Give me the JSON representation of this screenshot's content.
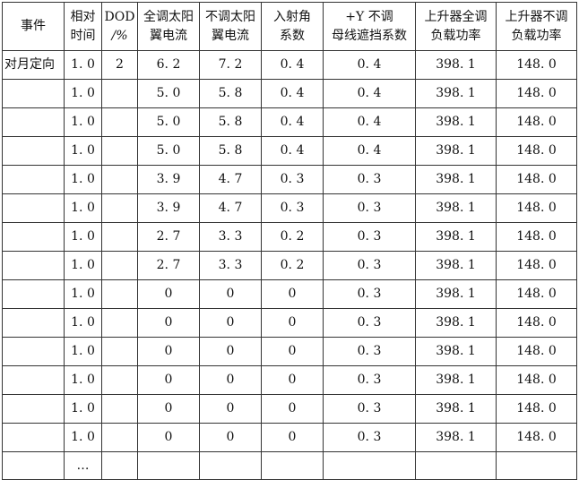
{
  "table": {
    "headers": [
      [
        "事件"
      ],
      [
        "相对",
        "时间"
      ],
      [
        "DOD",
        "/%"
      ],
      [
        "全调太阳",
        "翼电流"
      ],
      [
        "不调太阳",
        "翼电流"
      ],
      [
        "入射角",
        "系数"
      ],
      [
        "+Y 不调",
        "母线遮挡系数"
      ],
      [
        "上升器全调",
        "负载功率"
      ],
      [
        "上升器不调",
        "负载功率"
      ]
    ],
    "rows": [
      [
        "对月定向",
        "1. 0",
        "2",
        "6. 2",
        "7. 2",
        "0. 4",
        "0. 4",
        "398. 1",
        "148. 0"
      ],
      [
        "",
        "1. 0",
        "",
        "5. 0",
        "5. 8",
        "0. 4",
        "0. 4",
        "398. 1",
        "148. 0"
      ],
      [
        "",
        "1. 0",
        "",
        "5. 0",
        "5. 8",
        "0. 4",
        "0. 4",
        "398. 1",
        "148. 0"
      ],
      [
        "",
        "1. 0",
        "",
        "5. 0",
        "5. 8",
        "0. 4",
        "0. 4",
        "398. 1",
        "148. 0"
      ],
      [
        "",
        "1. 0",
        "",
        "3. 9",
        "4. 7",
        "0. 3",
        "0. 3",
        "398. 1",
        "148. 0"
      ],
      [
        "",
        "1. 0",
        "",
        "3. 9",
        "4. 7",
        "0. 3",
        "0. 3",
        "398. 1",
        "148. 0"
      ],
      [
        "",
        "1. 0",
        "",
        "2. 7",
        "3. 3",
        "0. 2",
        "0. 3",
        "398. 1",
        "148. 0"
      ],
      [
        "",
        "1. 0",
        "",
        "2. 7",
        "3. 3",
        "0. 2",
        "0. 3",
        "398. 1",
        "148. 0"
      ],
      [
        "",
        "1. 0",
        "",
        "0",
        "0",
        "0",
        "0. 3",
        "398. 1",
        "148. 0"
      ],
      [
        "",
        "1. 0",
        "",
        "0",
        "0",
        "0",
        "0. 3",
        "398. 1",
        "148. 0"
      ],
      [
        "",
        "1. 0",
        "",
        "0",
        "0",
        "0",
        "0. 3",
        "398. 1",
        "148. 0"
      ],
      [
        "",
        "1. 0",
        "",
        "0",
        "0",
        "0",
        "0. 3",
        "398. 1",
        "148. 0"
      ],
      [
        "",
        "1. 0",
        "",
        "0",
        "0",
        "0",
        "0. 3",
        "398. 1",
        "148. 0"
      ],
      [
        "",
        "1. 0",
        "",
        "0",
        "0",
        "0",
        "0. 3",
        "398. 1",
        "148. 0"
      ],
      [
        "",
        "…",
        "",
        "",
        "",
        "",
        "",
        "",
        ""
      ]
    ]
  }
}
